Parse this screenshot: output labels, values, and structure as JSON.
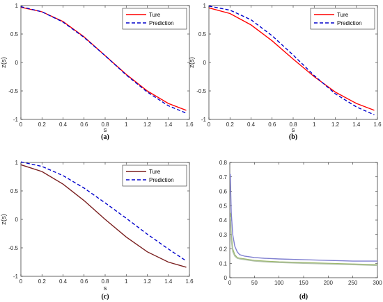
{
  "chart_data": [
    {
      "id": "a",
      "type": "line",
      "caption": "(a)",
      "xlabel": "s",
      "ylabel": "z(s)",
      "xlim": [
        0,
        1.6
      ],
      "ylim": [
        -1,
        1
      ],
      "xticks": [
        "0",
        "0.2",
        "0.4",
        "0.6",
        "0.8",
        "1",
        "1.2",
        "1.4",
        "1.6"
      ],
      "yticks": [
        "-1",
        "-0.5",
        "0",
        "0.5",
        "1"
      ],
      "legend": {
        "position": "top-right",
        "entries": [
          "Ture",
          "Prediction"
        ]
      },
      "series": [
        {
          "name": "Ture",
          "color": "#ff0000",
          "style": "solid",
          "x": [
            0,
            0.2,
            0.4,
            0.6,
            0.8,
            1.0,
            1.2,
            1.4,
            1.57
          ],
          "y": [
            0.97,
            0.89,
            0.72,
            0.45,
            0.12,
            -0.21,
            -0.5,
            -0.72,
            -0.84
          ]
        },
        {
          "name": "Prediction",
          "color": "#0000cc",
          "style": "dashed",
          "x": [
            0,
            0.2,
            0.4,
            0.6,
            0.8,
            1.0,
            1.2,
            1.4,
            1.57
          ],
          "y": [
            0.98,
            0.89,
            0.71,
            0.44,
            0.12,
            -0.22,
            -0.52,
            -0.76,
            -0.89
          ]
        }
      ]
    },
    {
      "id": "b",
      "type": "line",
      "caption": "(b)",
      "xlabel": "s",
      "ylabel": "z(s)",
      "xlim": [
        0,
        1.6
      ],
      "ylim": [
        -1,
        1
      ],
      "xticks": [
        "0",
        "0.2",
        "0.4",
        "0.6",
        "0.8",
        "1",
        "1.2",
        "1.4",
        "1.6"
      ],
      "yticks": [
        "-1",
        "-0.5",
        "0",
        "0.5",
        "1"
      ],
      "legend": {
        "position": "top-right",
        "entries": [
          "Ture",
          "Prediction"
        ]
      },
      "series": [
        {
          "name": "Ture",
          "color": "#ff0000",
          "style": "solid",
          "x": [
            0,
            0.2,
            0.4,
            0.6,
            0.8,
            1.0,
            1.2,
            1.4,
            1.57
          ],
          "y": [
            0.96,
            0.86,
            0.66,
            0.38,
            0.06,
            -0.25,
            -0.52,
            -0.72,
            -0.84
          ]
        },
        {
          "name": "Prediction",
          "color": "#0000cc",
          "style": "dashed",
          "x": [
            0,
            0.2,
            0.4,
            0.6,
            0.8,
            1.0,
            1.2,
            1.4,
            1.57
          ],
          "y": [
            0.99,
            0.92,
            0.75,
            0.47,
            0.13,
            -0.23,
            -0.55,
            -0.78,
            -0.92
          ]
        }
      ]
    },
    {
      "id": "c",
      "type": "line",
      "caption": "(c)",
      "xlabel": "s",
      "ylabel": "z(s)",
      "xlim": [
        0,
        1.6
      ],
      "ylim": [
        -1,
        1
      ],
      "xticks": [
        "0",
        "0.2",
        "0.4",
        "0.6",
        "0.8",
        "1",
        "1.2",
        "1.4",
        "1.6"
      ],
      "yticks": [
        "-1",
        "-0.5",
        "0",
        "0.5",
        "1"
      ],
      "legend": {
        "position": "top-right",
        "entries": [
          "Ture",
          "Prediction"
        ]
      },
      "series": [
        {
          "name": "Ture",
          "color": "#7a1f1f",
          "style": "solid",
          "x": [
            0,
            0.2,
            0.4,
            0.6,
            0.8,
            1.0,
            1.2,
            1.4,
            1.57
          ],
          "y": [
            0.96,
            0.84,
            0.62,
            0.33,
            0.0,
            -0.31,
            -0.57,
            -0.75,
            -0.84
          ]
        },
        {
          "name": "Prediction",
          "color": "#0000cc",
          "style": "dashed",
          "x": [
            0,
            0.2,
            0.4,
            0.6,
            0.8,
            1.0,
            1.2,
            1.4,
            1.57
          ],
          "y": [
            1.01,
            0.93,
            0.77,
            0.55,
            0.29,
            0.02,
            -0.26,
            -0.52,
            -0.73
          ]
        }
      ]
    },
    {
      "id": "d",
      "type": "line",
      "caption": "(d)",
      "xlabel": "",
      "ylabel": "",
      "xlim": [
        0,
        300
      ],
      "ylim": [
        0,
        0.8
      ],
      "xticks": [
        "0",
        "50",
        "100",
        "150",
        "200",
        "250",
        "300"
      ],
      "yticks": [
        "0",
        "0.1",
        "0.2",
        "0.3",
        "0.4",
        "0.5",
        "0.6",
        "0.7",
        "0.8"
      ],
      "series": [
        {
          "color": "#7f7fd0",
          "style": "solid",
          "x": [
            1,
            3,
            6,
            10,
            15,
            20,
            30,
            40,
            50,
            70,
            100,
            150,
            200,
            250,
            300
          ],
          "y": [
            0.72,
            0.45,
            0.3,
            0.22,
            0.18,
            0.16,
            0.15,
            0.145,
            0.14,
            0.135,
            0.13,
            0.125,
            0.12,
            0.115,
            0.115
          ]
        },
        {
          "color": "#9cb86a",
          "style": "solid",
          "x": [
            1,
            3,
            6,
            10,
            15,
            20,
            30,
            40,
            50,
            70,
            100,
            150,
            200,
            250,
            300
          ],
          "y": [
            0.45,
            0.3,
            0.2,
            0.16,
            0.14,
            0.135,
            0.13,
            0.125,
            0.12,
            0.115,
            0.11,
            0.105,
            0.1,
            0.095,
            0.09
          ]
        },
        {
          "color": "#b0c0a8",
          "style": "solid",
          "x": [
            1,
            3,
            6,
            10,
            15,
            20,
            30,
            40,
            50,
            70,
            100,
            150,
            200,
            250,
            300
          ],
          "y": [
            0.42,
            0.26,
            0.18,
            0.15,
            0.135,
            0.13,
            0.125,
            0.12,
            0.115,
            0.11,
            0.105,
            0.1,
            0.095,
            0.09,
            0.085
          ]
        }
      ]
    }
  ]
}
